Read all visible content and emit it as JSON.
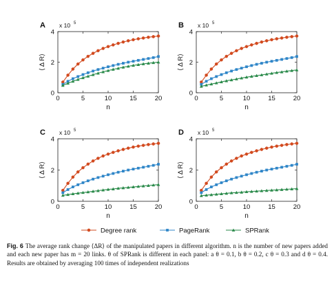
{
  "chart_data": [
    {
      "type": "line",
      "panel_label": "A",
      "xlabel": "n",
      "ylabel": "⟨ Δ R⟩",
      "y_multiplier": "x 10",
      "y_multiplier_exp": "5",
      "xlim": [
        0,
        20
      ],
      "ylim": [
        0,
        4
      ],
      "xticks": [
        "0",
        "5",
        "10",
        "15",
        "20"
      ],
      "yticks": [
        "0",
        "2",
        "4"
      ],
      "x": [
        1,
        2,
        3,
        4,
        5,
        6,
        7,
        8,
        9,
        10,
        11,
        12,
        13,
        14,
        15,
        16,
        17,
        18,
        19,
        20
      ],
      "series": [
        {
          "name": "Degree rank",
          "values": [
            0.7,
            1.15,
            1.55,
            1.88,
            2.15,
            2.38,
            2.58,
            2.75,
            2.9,
            3.02,
            3.13,
            3.23,
            3.32,
            3.4,
            3.47,
            3.53,
            3.58,
            3.63,
            3.67,
            3.71
          ]
        },
        {
          "name": "PageRank",
          "values": [
            0.55,
            0.75,
            0.92,
            1.06,
            1.19,
            1.31,
            1.42,
            1.52,
            1.61,
            1.7,
            1.78,
            1.86,
            1.93,
            2.0,
            2.06,
            2.12,
            2.18,
            2.24,
            2.3,
            2.37
          ]
        },
        {
          "name": "SPRank",
          "values": [
            0.48,
            0.62,
            0.75,
            0.87,
            0.98,
            1.08,
            1.18,
            1.28,
            1.37,
            1.45,
            1.53,
            1.6,
            1.67,
            1.73,
            1.79,
            1.84,
            1.89,
            1.93,
            1.97,
            2.0
          ]
        }
      ]
    },
    {
      "type": "line",
      "panel_label": "B",
      "xlabel": "n",
      "ylabel": "⟨ Δ R⟩",
      "y_multiplier": "x 10",
      "y_multiplier_exp": "5",
      "xlim": [
        0,
        20
      ],
      "ylim": [
        0,
        4
      ],
      "xticks": [
        "0",
        "5",
        "10",
        "15",
        "20"
      ],
      "yticks": [
        "0",
        "2",
        "4"
      ],
      "x": [
        1,
        2,
        3,
        4,
        5,
        6,
        7,
        8,
        9,
        10,
        11,
        12,
        13,
        14,
        15,
        16,
        17,
        18,
        19,
        20
      ],
      "series": [
        {
          "name": "Degree rank",
          "values": [
            0.7,
            1.15,
            1.55,
            1.88,
            2.15,
            2.38,
            2.58,
            2.75,
            2.9,
            3.02,
            3.13,
            3.23,
            3.32,
            3.4,
            3.47,
            3.53,
            3.58,
            3.63,
            3.67,
            3.71
          ]
        },
        {
          "name": "PageRank",
          "values": [
            0.55,
            0.75,
            0.92,
            1.06,
            1.19,
            1.31,
            1.42,
            1.52,
            1.61,
            1.7,
            1.78,
            1.86,
            1.93,
            2.0,
            2.06,
            2.12,
            2.18,
            2.24,
            2.3,
            2.37
          ]
        },
        {
          "name": "SPRank",
          "values": [
            0.42,
            0.5,
            0.57,
            0.64,
            0.71,
            0.78,
            0.84,
            0.9,
            0.96,
            1.02,
            1.07,
            1.12,
            1.17,
            1.22,
            1.27,
            1.32,
            1.36,
            1.41,
            1.45,
            1.49
          ]
        }
      ]
    },
    {
      "type": "line",
      "panel_label": "C",
      "xlabel": "n",
      "ylabel": "⟨ Δ R⟩",
      "y_multiplier": "x 10",
      "y_multiplier_exp": "5",
      "xlim": [
        0,
        20
      ],
      "ylim": [
        0,
        4
      ],
      "xticks": [
        "0",
        "5",
        "10",
        "15",
        "20"
      ],
      "yticks": [
        "0",
        "2",
        "4"
      ],
      "x": [
        1,
        2,
        3,
        4,
        5,
        6,
        7,
        8,
        9,
        10,
        11,
        12,
        13,
        14,
        15,
        16,
        17,
        18,
        19,
        20
      ],
      "series": [
        {
          "name": "Degree rank",
          "values": [
            0.7,
            1.15,
            1.55,
            1.88,
            2.15,
            2.38,
            2.58,
            2.75,
            2.9,
            3.02,
            3.13,
            3.23,
            3.32,
            3.4,
            3.47,
            3.53,
            3.58,
            3.63,
            3.67,
            3.71
          ]
        },
        {
          "name": "PageRank",
          "values": [
            0.55,
            0.75,
            0.92,
            1.06,
            1.19,
            1.31,
            1.42,
            1.52,
            1.61,
            1.7,
            1.78,
            1.86,
            1.93,
            2.0,
            2.06,
            2.12,
            2.18,
            2.24,
            2.3,
            2.37
          ]
        },
        {
          "name": "SPRank",
          "values": [
            0.38,
            0.43,
            0.48,
            0.52,
            0.56,
            0.6,
            0.64,
            0.68,
            0.72,
            0.76,
            0.79,
            0.83,
            0.86,
            0.89,
            0.92,
            0.95,
            0.98,
            1.01,
            1.04,
            1.07
          ]
        }
      ]
    },
    {
      "type": "line",
      "panel_label": "D",
      "xlabel": "n",
      "ylabel": "⟨ Δ R⟩",
      "y_multiplier": "x 10",
      "y_multiplier_exp": "5",
      "xlim": [
        0,
        20
      ],
      "ylim": [
        0,
        4
      ],
      "xticks": [
        "0",
        "5",
        "10",
        "15",
        "20"
      ],
      "yticks": [
        "0",
        "2",
        "4"
      ],
      "x": [
        1,
        2,
        3,
        4,
        5,
        6,
        7,
        8,
        9,
        10,
        11,
        12,
        13,
        14,
        15,
        16,
        17,
        18,
        19,
        20
      ],
      "series": [
        {
          "name": "Degree rank",
          "values": [
            0.7,
            1.15,
            1.55,
            1.88,
            2.15,
            2.38,
            2.58,
            2.75,
            2.9,
            3.02,
            3.13,
            3.23,
            3.32,
            3.4,
            3.47,
            3.53,
            3.58,
            3.63,
            3.67,
            3.71
          ]
        },
        {
          "name": "PageRank",
          "values": [
            0.55,
            0.75,
            0.92,
            1.06,
            1.19,
            1.31,
            1.42,
            1.52,
            1.61,
            1.7,
            1.78,
            1.86,
            1.93,
            2.0,
            2.06,
            2.12,
            2.18,
            2.24,
            2.3,
            2.37
          ]
        },
        {
          "name": "SPRank",
          "values": [
            0.36,
            0.39,
            0.42,
            0.45,
            0.48,
            0.51,
            0.54,
            0.56,
            0.58,
            0.61,
            0.63,
            0.65,
            0.67,
            0.69,
            0.71,
            0.73,
            0.75,
            0.77,
            0.79,
            0.81
          ]
        }
      ]
    }
  ],
  "legend": {
    "placement": "bottom",
    "items": [
      {
        "label": "Degree rank",
        "color": "#d24a1f",
        "marker": "circle"
      },
      {
        "label": "PageRank",
        "color": "#2f86c8",
        "marker": "square"
      },
      {
        "label": "SPRank",
        "color": "#2a8a4a",
        "marker": "triangle"
      }
    ]
  },
  "caption": {
    "label": "Fig. 6",
    "text": "The average rank change ⟨ΔR⟩ of the manipulated papers in different algorithm. n is the number of new papers added and each new paper has m = 20 links. θ of SPRank is different in each panel: a θ = 0.1, b θ = 0.2, c θ = 0.3 and d θ = 0.4. Results are obtained by averaging 100 times of independent realizations"
  }
}
